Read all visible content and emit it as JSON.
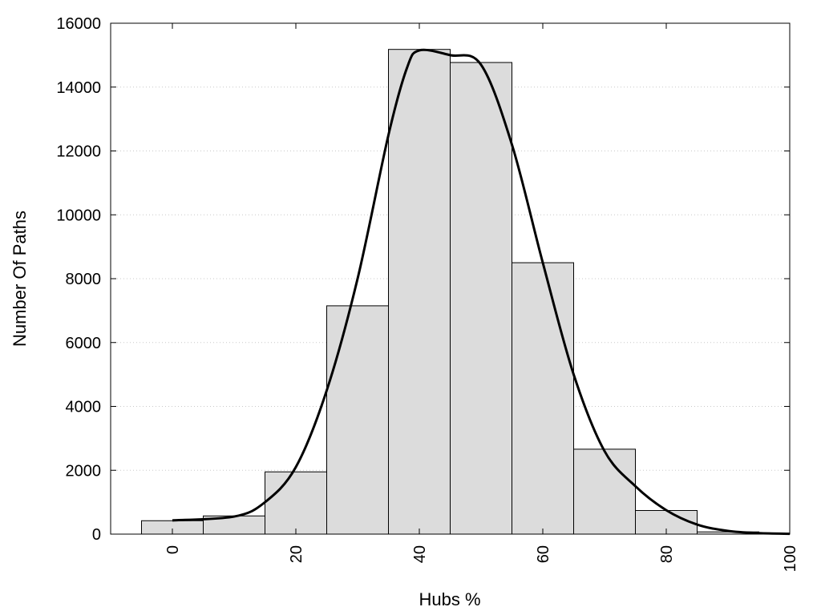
{
  "chart_data": {
    "type": "bar",
    "title": "",
    "xlabel": "Hubs %",
    "ylabel": "Number Of Paths",
    "xlim": [
      -10,
      100
    ],
    "ylim": [
      0,
      16000
    ],
    "x_ticks": [
      0,
      20,
      40,
      60,
      80,
      100
    ],
    "y_ticks": [
      0,
      2000,
      4000,
      6000,
      8000,
      10000,
      12000,
      14000,
      16000
    ],
    "grid": "horizontal dotted",
    "bin_width": 10,
    "bars": {
      "centers": [
        0,
        10,
        20,
        30,
        40,
        50,
        60,
        70,
        80,
        90,
        100
      ],
      "values": [
        420,
        570,
        1950,
        7150,
        15180,
        14770,
        8500,
        2660,
        740,
        70,
        20
      ]
    },
    "curve": {
      "x": [
        0,
        10,
        15,
        20,
        25,
        30,
        35,
        38,
        40,
        45,
        50,
        55,
        60,
        65,
        70,
        75,
        80,
        85,
        90,
        95,
        100
      ],
      "y": [
        430,
        550,
        1000,
        2100,
        4500,
        8000,
        12500,
        14600,
        15150,
        15000,
        14700,
        12200,
        8500,
        5000,
        2600,
        1500,
        750,
        300,
        100,
        30,
        10
      ]
    },
    "colors": {
      "bar_fill": "#dcdcdc",
      "bar_stroke": "#000000",
      "curve": "#000000",
      "grid": "#c8c8c8"
    }
  }
}
